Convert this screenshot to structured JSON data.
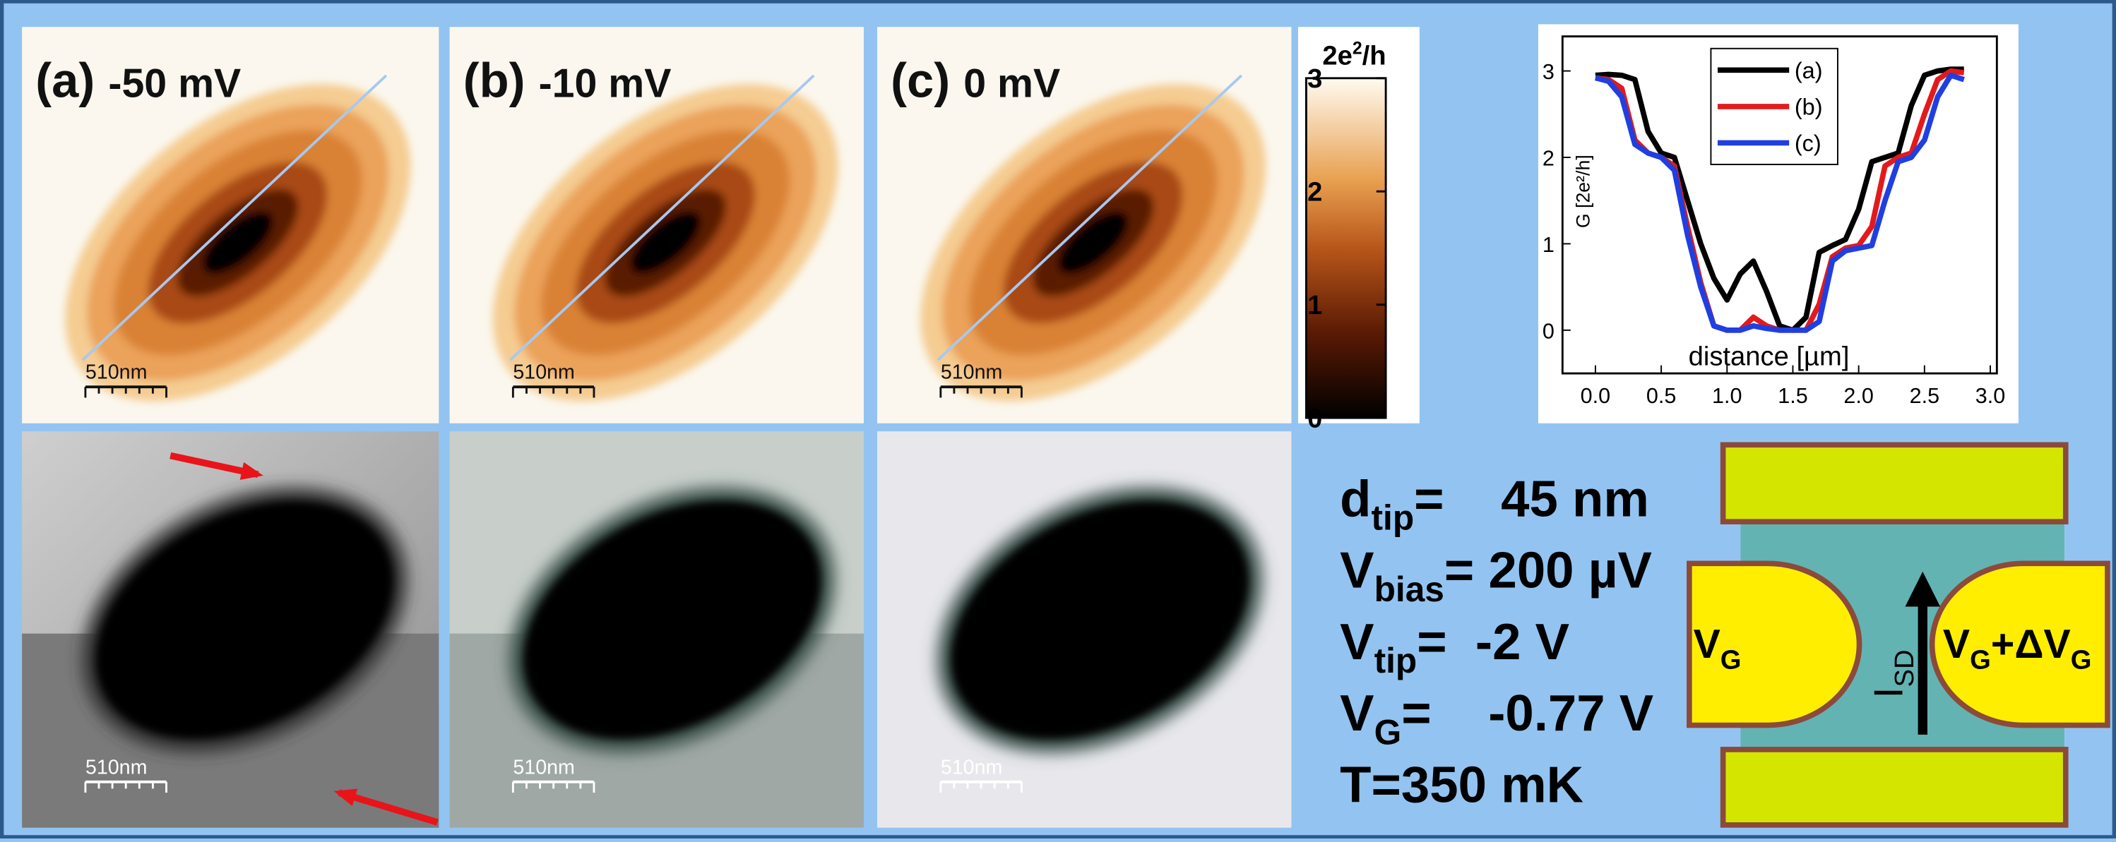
{
  "panels": [
    {
      "label": "(a)",
      "title": "-50 mV",
      "scale": "510nm",
      "bottom_scale": "510nm"
    },
    {
      "label": "(b)",
      "title": "-10 mV",
      "scale": "510nm",
      "bottom_scale": "510nm"
    },
    {
      "label": "(c)",
      "title": "0 mV",
      "scale": "510nm",
      "bottom_scale": "510nm"
    }
  ],
  "colorbar": {
    "unit_prefix": "2e",
    "unit_exp": "2",
    "unit_suffix": "/h",
    "lim": [
      0,
      3
    ],
    "ticks": [
      0,
      1,
      2,
      3
    ]
  },
  "chart_data": {
    "type": "line",
    "xlabel": "distance [µm]",
    "ylabel": "G [2e²/h]",
    "x": [
      0.0,
      0.1,
      0.2,
      0.3,
      0.4,
      0.5,
      0.6,
      0.7,
      0.8,
      0.9,
      1.0,
      1.1,
      1.2,
      1.3,
      1.4,
      1.5,
      1.6,
      1.7,
      1.8,
      1.9,
      2.0,
      2.1,
      2.2,
      2.3,
      2.4,
      2.5,
      2.6,
      2.7,
      2.8
    ],
    "series": [
      {
        "name": "(a)",
        "color": "#000000",
        "values": [
          2.95,
          2.96,
          2.95,
          2.9,
          2.3,
          2.05,
          2.0,
          1.5,
          1.0,
          0.6,
          0.35,
          0.65,
          0.8,
          0.45,
          0.05,
          0.0,
          0.15,
          0.9,
          0.98,
          1.05,
          1.4,
          1.95,
          2.0,
          2.05,
          2.6,
          2.95,
          3.0,
          3.02,
          3.02
        ]
      },
      {
        "name": "(b)",
        "color": "#e31a1c",
        "values": [
          2.92,
          2.9,
          2.8,
          2.2,
          2.05,
          2.0,
          1.9,
          1.2,
          0.55,
          0.05,
          0.0,
          0.0,
          0.15,
          0.05,
          0.0,
          0.0,
          0.0,
          0.3,
          0.85,
          0.95,
          0.98,
          1.2,
          1.9,
          2.0,
          2.05,
          2.5,
          2.9,
          3.0,
          2.98
        ]
      },
      {
        "name": "(c)",
        "color": "#1f3fe0",
        "values": [
          2.92,
          2.88,
          2.7,
          2.15,
          2.05,
          2.0,
          1.85,
          1.1,
          0.5,
          0.05,
          0.0,
          0.0,
          0.05,
          0.02,
          0.0,
          0.0,
          0.0,
          0.1,
          0.8,
          0.92,
          0.95,
          0.98,
          1.5,
          1.95,
          2.0,
          2.2,
          2.7,
          2.95,
          2.9
        ]
      }
    ],
    "xlim": [
      -0.25,
      3.05
    ],
    "ylim": [
      -0.5,
      3.4
    ],
    "xticks": [
      {
        "value": 0,
        "label": "0.0"
      },
      0.5,
      {
        "value": 1,
        "label": "1.0"
      },
      1.5,
      {
        "value": 2,
        "label": "2.0"
      },
      2.5,
      {
        "value": 3,
        "label": "3.0"
      }
    ],
    "yticks": [
      0,
      1,
      2,
      3
    ]
  },
  "parameters": [
    {
      "symbol": "d",
      "sub": "tip",
      "value": "=    45 nm"
    },
    {
      "symbol": "V",
      "sub": "bias",
      "value": "= 200 µV"
    },
    {
      "symbol": "V",
      "sub": "tip",
      "value": "=  -2 V"
    },
    {
      "symbol": "V",
      "sub": "G",
      "value": "=    -0.77 V"
    },
    {
      "symbol": "T=350 mK",
      "sub": "",
      "value": ""
    }
  ],
  "device": {
    "left_gate": {
      "symbol": "V",
      "sub": "G"
    },
    "right_gate": {
      "symbol": "V",
      "sub": "G",
      "mid": "+ΔV",
      "sub2": "G"
    },
    "current": {
      "symbol": "I",
      "sub": "SD"
    }
  }
}
